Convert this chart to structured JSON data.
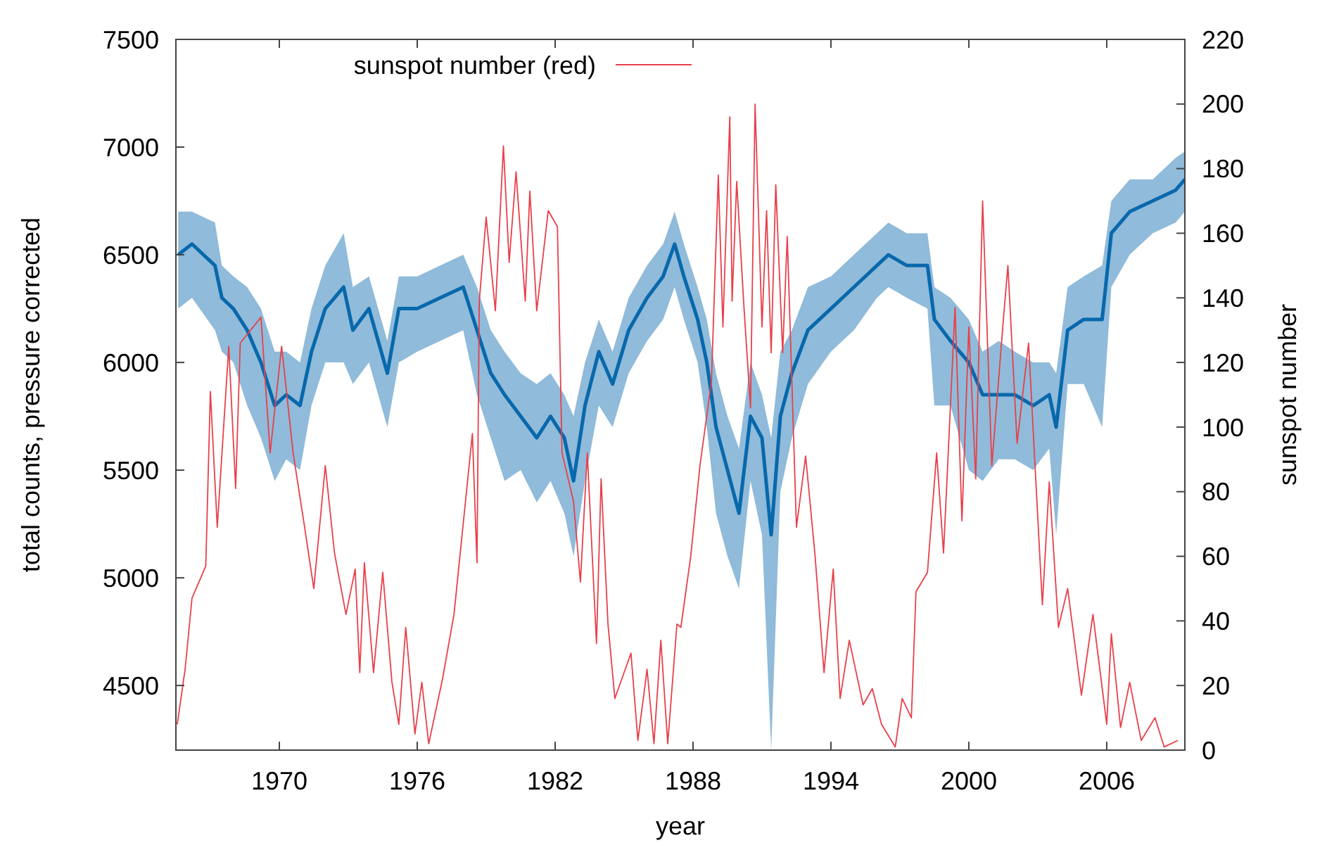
{
  "chart_data": {
    "type": "line",
    "xlabel": "year",
    "ylabel": "total counts, pressure corrected",
    "y2label": "sunspot number",
    "xlim": [
      1965.5,
      2009.4
    ],
    "xticks": [
      1970,
      1976,
      1982,
      1988,
      1994,
      2000,
      2006
    ],
    "ylim": [
      4200,
      7500
    ],
    "yticks": [
      4500,
      5000,
      5500,
      6000,
      6500,
      7000,
      7500
    ],
    "y2lim": [
      0,
      220
    ],
    "y2ticks": [
      0,
      20,
      40,
      60,
      80,
      100,
      120,
      140,
      160,
      180,
      200,
      220
    ],
    "grid": false,
    "legend": "top",
    "series": [
      {
        "color": "#0868ac",
        "x": [
          1965.6,
          1966.2,
          1967.2,
          1967.5,
          1968.0,
          1968.6,
          1969.2,
          1969.8,
          1970.3,
          1970.9,
          1971.4,
          1972.0,
          1972.8,
          1973.2,
          1973.9,
          1974.7,
          1975.2,
          1976.0,
          1977.0,
          1978.0,
          1978.6,
          1979.2,
          1979.8,
          1980.5,
          1981.2,
          1981.8,
          1982.4,
          1982.8,
          1983.3,
          1983.9,
          1984.5,
          1985.2,
          1986.0,
          1986.7,
          1987.2,
          1987.6,
          1988.2,
          1988.6,
          1989.0,
          1989.5,
          1990.0,
          1990.5,
          1991.0,
          1991.4,
          1991.8,
          1992.3,
          1993.0,
          1994.0,
          1995.0,
          1996.0,
          1996.5,
          1997.3,
          1998.2,
          1998.5,
          1999.2,
          2000.0,
          2000.6,
          2001.3,
          2002.0,
          2002.8,
          2003.5,
          2003.8,
          2004.3,
          2005.0,
          2005.8,
          2006.2,
          2007.0,
          2008.0,
          2009.0,
          2009.4
        ],
        "values": [
          6500,
          6550,
          6450,
          6300,
          6250,
          6150,
          6000,
          5800,
          5850,
          5800,
          6050,
          6250,
          6350,
          6150,
          6250,
          5950,
          6250,
          6250,
          6300,
          6350,
          6150,
          5950,
          5850,
          5750,
          5650,
          5750,
          5650,
          5450,
          5800,
          6050,
          5900,
          6150,
          6300,
          6400,
          6550,
          6400,
          6200,
          6000,
          5700,
          5500,
          5300,
          5750,
          5650,
          5200,
          5750,
          5950,
          6150,
          6250,
          6350,
          6450,
          6500,
          6450,
          6450,
          6200,
          6100,
          6000,
          5850,
          5850,
          5850,
          5800,
          5850,
          5700,
          6150,
          6200,
          6200,
          6600,
          6700,
          6750,
          6800,
          6850
        ],
        "lower": [
          6250,
          6300,
          6150,
          6050,
          6000,
          5800,
          5650,
          5450,
          5550,
          5500,
          5800,
          6000,
          6000,
          5900,
          6000,
          5700,
          6000,
          6050,
          6100,
          6150,
          5850,
          5650,
          5450,
          5500,
          5350,
          5450,
          5300,
          5100,
          5450,
          5800,
          5700,
          5950,
          6100,
          6200,
          6350,
          6200,
          6000,
          5700,
          5300,
          5100,
          4950,
          5450,
          5200,
          4200,
          5400,
          5650,
          5900,
          6050,
          6150,
          6300,
          6350,
          6300,
          6250,
          5800,
          5800,
          5500,
          5450,
          5550,
          5550,
          5500,
          5600,
          5200,
          5900,
          5900,
          5700,
          6350,
          6500,
          6600,
          6650,
          6700
        ],
        "upper": [
          6700,
          6700,
          6650,
          6450,
          6400,
          6350,
          6250,
          6050,
          6050,
          6000,
          6250,
          6450,
          6600,
          6350,
          6400,
          6100,
          6400,
          6400,
          6450,
          6500,
          6350,
          6150,
          6050,
          5950,
          5900,
          5950,
          5850,
          5750,
          6000,
          6200,
          6050,
          6300,
          6450,
          6550,
          6700,
          6550,
          6350,
          6200,
          5950,
          5750,
          5600,
          6000,
          5850,
          5650,
          6050,
          6150,
          6350,
          6400,
          6500,
          6600,
          6650,
          6600,
          6600,
          6350,
          6300,
          6200,
          6050,
          6100,
          6050,
          6000,
          6000,
          5950,
          6350,
          6400,
          6450,
          6750,
          6850,
          6850,
          6950,
          6980
        ]
      },
      {
        "name": "sunspot number (red)",
        "color": "#e8404a",
        "axis": "y2",
        "x": [
          1965.56,
          1965.9,
          1966.2,
          1966.8,
          1967.0,
          1967.3,
          1967.8,
          1968.1,
          1968.3,
          1969.2,
          1969.6,
          1970.1,
          1970.6,
          1971.1,
          1971.5,
          1972.0,
          1972.4,
          1972.9,
          1973.3,
          1973.5,
          1973.7,
          1974.1,
          1974.5,
          1974.9,
          1975.2,
          1975.5,
          1975.9,
          1976.2,
          1976.5,
          1977.1,
          1977.6,
          1978.1,
          1978.4,
          1978.6,
          1978.7,
          1979.0,
          1979.4,
          1979.75,
          1980.0,
          1980.3,
          1980.7,
          1980.9,
          1981.2,
          1981.7,
          1982.1,
          1982.3,
          1982.8,
          1983.1,
          1983.4,
          1983.8,
          1984.0,
          1984.3,
          1984.6,
          1985.3,
          1985.6,
          1986.0,
          1986.3,
          1986.6,
          1986.9,
          1987.3,
          1987.47,
          1987.9,
          1988.3,
          1988.8,
          1989.1,
          1989.3,
          1989.6,
          1989.7,
          1989.9,
          1990.2,
          1990.5,
          1990.7,
          1991.0,
          1991.2,
          1991.4,
          1991.6,
          1991.9,
          1992.1,
          1992.5,
          1992.9,
          1993.3,
          1993.7,
          1994.1,
          1994.4,
          1994.8,
          1995.4,
          1995.8,
          1996.2,
          1996.8,
          1997.1,
          1997.5,
          1997.7,
          1998.2,
          1998.6,
          1998.9,
          1999.4,
          1999.7,
          2000.0,
          2000.3,
          2000.6,
          2001.0,
          2001.5,
          2001.7,
          2002.1,
          2002.6,
          2003.2,
          2003.5,
          2003.9,
          2004.3,
          2004.9,
          2005.4,
          2006.0,
          2006.2,
          2006.6,
          2007.0,
          2007.5,
          2008.1,
          2008.5,
          2009.1
        ],
        "values": [
          8,
          25,
          47,
          57,
          111,
          69,
          125,
          81,
          126,
          134,
          92,
          125,
          92,
          69,
          50,
          88,
          61,
          42,
          56,
          24,
          58,
          24,
          55,
          21,
          8,
          38,
          5,
          21,
          2,
          22,
          42,
          77,
          98,
          58,
          139,
          165,
          136,
          187,
          151,
          179,
          139,
          173,
          136,
          167,
          162,
          92,
          77,
          52,
          92,
          33,
          84,
          39,
          16,
          30,
          3,
          25,
          2,
          34,
          2,
          39,
          38,
          60,
          88,
          114,
          178,
          131,
          196,
          139,
          176,
          139,
          106,
          200,
          131,
          167,
          123,
          175,
          123,
          159,
          69,
          91,
          61,
          24,
          56,
          16,
          34,
          14,
          19,
          8,
          1,
          16,
          10,
          49,
          55,
          92,
          61,
          137,
          71,
          131,
          84,
          170,
          88,
          133,
          150,
          95,
          126,
          45,
          83,
          38,
          50,
          17,
          42,
          8,
          36,
          7,
          21,
          3,
          10,
          1,
          3
        ]
      }
    ]
  }
}
